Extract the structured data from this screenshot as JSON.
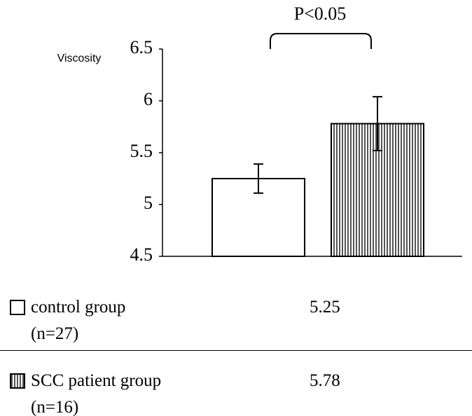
{
  "chart_data": {
    "type": "bar",
    "annotation": "P<0.05",
    "ylabel": "Viscosity",
    "ylim": [
      4.5,
      6.5
    ],
    "yticks": [
      4.5,
      5,
      5.5,
      6,
      6.5
    ],
    "series": [
      {
        "name": "control group (n=27)",
        "color": "#ffffff",
        "pattern": "none",
        "values": [
          5.25
        ],
        "errors": [
          0.14
        ]
      },
      {
        "name": "SCC patient group (n=16)",
        "color": "#555555",
        "pattern": "vertical-stripes",
        "values": [
          5.78
        ],
        "errors": [
          0.26
        ]
      }
    ]
  }
}
